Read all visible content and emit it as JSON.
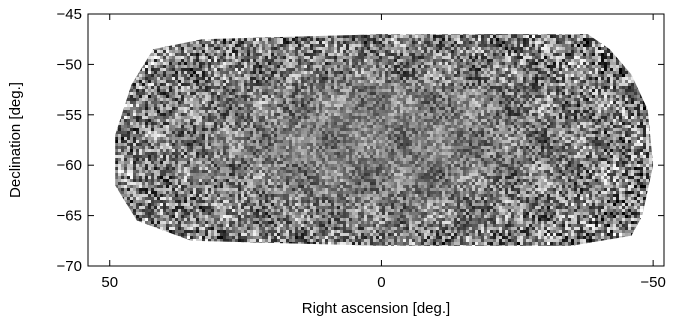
{
  "chart_data": {
    "type": "heatmap",
    "title": "",
    "xlabel": "Right ascension [deg.]",
    "ylabel": "Declination [deg.]",
    "xlim": [
      54,
      -52
    ],
    "ylim": [
      -70,
      -45
    ],
    "x_ticks": [
      {
        "value": 50,
        "label": "50"
      },
      {
        "value": 0,
        "label": "0"
      },
      {
        "value": -50,
        "label": "−50"
      }
    ],
    "y_ticks": [
      {
        "value": -45,
        "label": "−45"
      },
      {
        "value": -50,
        "label": "−50"
      },
      {
        "value": -55,
        "label": "−55"
      },
      {
        "value": -60,
        "label": "−60"
      },
      {
        "value": -65,
        "label": "−65"
      },
      {
        "value": -70,
        "label": "−70"
      }
    ],
    "colormap": "grayscale",
    "footprint_polygon": [
      [
        42,
        -48.5
      ],
      [
        33,
        -47.5
      ],
      [
        0,
        -47.0
      ],
      [
        -38,
        -47.0
      ],
      [
        -42,
        -48.5
      ],
      [
        -46,
        -51.0
      ],
      [
        -49,
        -54.5
      ],
      [
        -50,
        -60.0
      ],
      [
        -48,
        -65.0
      ],
      [
        -46,
        -67.0
      ],
      [
        -35,
        -68.0
      ],
      [
        0,
        -68.0
      ],
      [
        35,
        -67.5
      ],
      [
        45,
        -65.5
      ],
      [
        49,
        -62.0
      ],
      [
        49,
        -57.0
      ],
      [
        46,
        -52.0
      ]
    ],
    "grid": false,
    "legend": "none"
  }
}
